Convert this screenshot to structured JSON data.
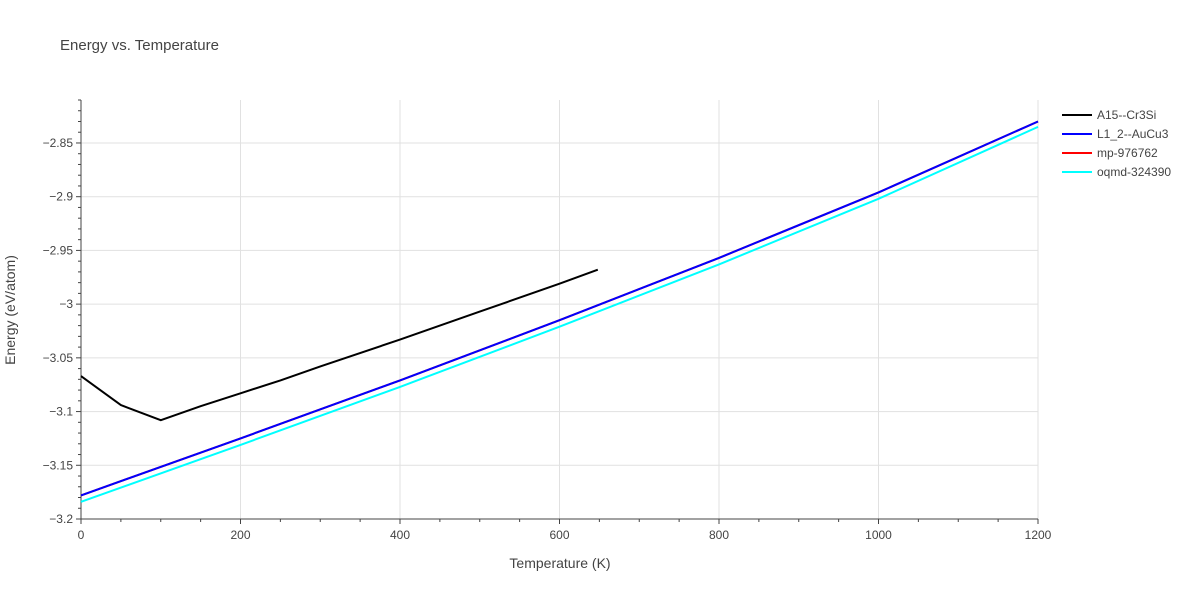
{
  "chart_data": {
    "type": "line",
    "title": "Energy vs. Temperature",
    "xlabel": "Temperature (K)",
    "ylabel": "Energy (eV/atom)",
    "xlim": [
      0,
      1200
    ],
    "ylim": [
      -3.2,
      -2.81
    ],
    "x_ticks": [
      {
        "value": 0,
        "label": "0"
      },
      {
        "value": 200,
        "label": "200"
      },
      {
        "value": 400,
        "label": "400"
      },
      {
        "value": 600,
        "label": "600"
      },
      {
        "value": 800,
        "label": "800"
      },
      {
        "value": 1000,
        "label": "1000"
      },
      {
        "value": 1200,
        "label": "1200"
      }
    ],
    "y_ticks": [
      {
        "value": -2.85,
        "label": "−2.85"
      },
      {
        "value": -2.9,
        "label": "−2.9"
      },
      {
        "value": -2.95,
        "label": "−2.95"
      },
      {
        "value": -3.0,
        "label": "−3"
      },
      {
        "value": -3.05,
        "label": "−3.05"
      },
      {
        "value": -3.1,
        "label": "−3.1"
      },
      {
        "value": -3.15,
        "label": "−3.15"
      },
      {
        "value": -3.2,
        "label": "−3.2"
      }
    ],
    "grid": true,
    "legend_position": "right",
    "series": [
      {
        "name": "A15--Cr3Si",
        "color": "#000000",
        "x": [
          0,
          50,
          100,
          150,
          200,
          250,
          300,
          400,
          500,
          600,
          648
        ],
        "y": [
          -3.067,
          -3.094,
          -3.108,
          -3.095,
          -3.083,
          -3.071,
          -3.058,
          -3.033,
          -3.007,
          -2.981,
          -2.968
        ]
      },
      {
        "name": "L1_2--AuCu3",
        "color": "#0000ff",
        "x": [
          0,
          200,
          400,
          600,
          800,
          1000,
          1200
        ],
        "y": [
          -3.178,
          -3.125,
          -3.071,
          -3.015,
          -2.957,
          -2.896,
          -2.83
        ]
      },
      {
        "name": "mp-976762",
        "color": "#ff0000",
        "x": [
          0,
          200,
          400,
          600,
          800,
          1000,
          1200
        ],
        "y": [
          -3.178,
          -3.125,
          -3.071,
          -3.015,
          -2.957,
          -2.896,
          -2.83
        ]
      },
      {
        "name": "oqmd-324390",
        "color": "#00ffff",
        "x": [
          0,
          200,
          400,
          600,
          800,
          1000,
          1200
        ],
        "y": [
          -3.184,
          -3.131,
          -3.077,
          -3.021,
          -2.963,
          -2.902,
          -2.835
        ]
      }
    ]
  }
}
